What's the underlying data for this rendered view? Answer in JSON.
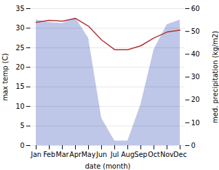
{
  "chart_data": {
    "type": "line",
    "xlabel": "date (month)",
    "ylabel": "max temp (C)",
    "y2label": "med. precipitation (kg/m2)",
    "categories": [
      "Jan",
      "Feb",
      "Mar",
      "Apr",
      "May",
      "Jun",
      "Jul",
      "Aug",
      "Sep",
      "Oct",
      "Nov",
      "Dec"
    ],
    "series": [
      {
        "type": "area",
        "axis": "y2",
        "color": "#aab4e0",
        "values": [
          55.0,
          54.0,
          53.5,
          56.0,
          47.0,
          12.0,
          2.0,
          2.0,
          18.0,
          42.0,
          53.0,
          55.0
        ]
      },
      {
        "type": "line",
        "axis": "y",
        "color": "#b03030",
        "values": [
          31.5,
          32.0,
          31.8,
          32.5,
          30.5,
          27.0,
          24.5,
          24.5,
          25.5,
          27.5,
          29.0,
          29.5
        ]
      }
    ],
    "ylim": [
      0,
      35
    ],
    "yticks": [
      0,
      5,
      10,
      15,
      20,
      25,
      30,
      35
    ],
    "y2lim": [
      0,
      60
    ],
    "y2ticks": [
      0,
      10,
      20,
      30,
      40,
      50,
      60
    ],
    "grid": true
  }
}
